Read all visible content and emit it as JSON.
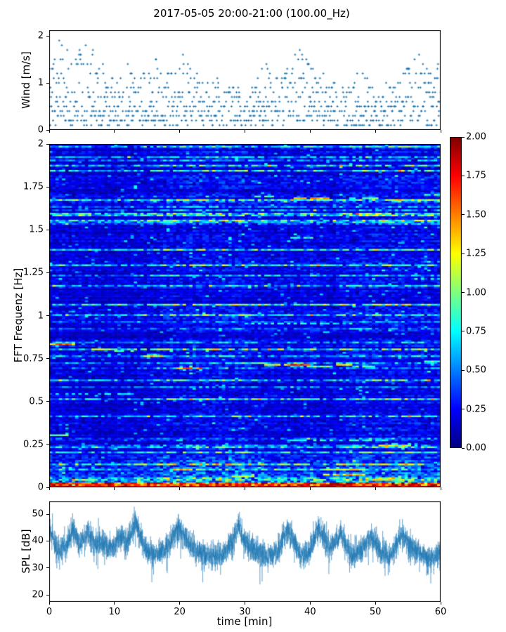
{
  "figure": {
    "title": "2017-05-05 20:00-21:00 (100.00_Hz)",
    "background_color": "#ffffff",
    "accent_color": "#1f77b4"
  },
  "chart_data": [
    {
      "id": "wind",
      "type": "scatter",
      "ylabel": "Wind [m/s]",
      "xlim": [
        0,
        60
      ],
      "ylim": [
        0,
        2.12
      ],
      "yticks": [
        {
          "v": 0,
          "label": "0"
        },
        {
          "v": 1,
          "label": "1"
        },
        {
          "v": 2,
          "label": "2"
        }
      ],
      "xticks": [
        {
          "v": 0
        },
        {
          "v": 10
        },
        {
          "v": 20
        },
        {
          "v": 30
        },
        {
          "v": 40
        },
        {
          "v": 50
        },
        {
          "v": 60
        }
      ],
      "marker_color": "#1f77b4",
      "value_quantization": 0.1,
      "per_minute_max_wind": [
        1.4,
        2.0,
        1.8,
        1.5,
        1.7,
        1.9,
        1.8,
        1.5,
        1.5,
        1.2,
        1.0,
        1.3,
        1.5,
        1.1,
        1.3,
        1.2,
        1.5,
        1.3,
        1.2,
        1.6,
        1.7,
        1.4,
        1.2,
        1.1,
        1.0,
        1.2,
        0.9,
        1.0,
        1.0,
        0.9,
        0.9,
        1.0,
        1.3,
        1.5,
        1.2,
        1.1,
        1.3,
        1.6,
        1.7,
        1.5,
        1.3,
        1.2,
        1.3,
        1.1,
        1.0,
        0.9,
        0.9,
        1.3,
        1.2,
        0.9,
        0.8,
        1.0,
        0.9,
        1.1,
        1.2,
        1.6,
        1.7,
        1.4,
        1.3,
        1.5
      ]
    },
    {
      "id": "fft",
      "type": "heatmap",
      "ylabel": "FFT Frequenz [Hz]",
      "xlim": [
        0,
        60
      ],
      "ylim": [
        0,
        2
      ],
      "yticks": [
        {
          "v": 0,
          "label": "0"
        },
        {
          "v": 0.25,
          "label": "0.25"
        },
        {
          "v": 0.5,
          "label": "0.5"
        },
        {
          "v": 0.75,
          "label": "0.75"
        },
        {
          "v": 1,
          "label": "1"
        },
        {
          "v": 1.25,
          "label": "1.25"
        },
        {
          "v": 1.5,
          "label": "1.5"
        },
        {
          "v": 1.75,
          "label": "1.75"
        },
        {
          "v": 2,
          "label": "2"
        }
      ],
      "xticks": [
        {
          "v": 0
        },
        {
          "v": 10
        },
        {
          "v": 20
        },
        {
          "v": 30
        },
        {
          "v": 40
        },
        {
          "v": 50
        },
        {
          "v": 60
        }
      ],
      "colormap": "jet",
      "clim": [
        0,
        2
      ],
      "colorbar_ticks": [
        {
          "v": 0,
          "label": "0.00"
        },
        {
          "v": 0.25,
          "label": "0.25"
        },
        {
          "v": 0.5,
          "label": "0.50"
        },
        {
          "v": 0.75,
          "label": "0.75"
        },
        {
          "v": 1,
          "label": "1.00"
        },
        {
          "v": 1.25,
          "label": "1.25"
        },
        {
          "v": 1.5,
          "label": "1.50"
        },
        {
          "v": 1.75,
          "label": "1.75"
        },
        {
          "v": 2,
          "label": "2.00"
        }
      ],
      "grid": {
        "cols": 120,
        "rows": 200
      },
      "background_texture": {
        "row_base": 0.14,
        "streak_prob": 0.16,
        "streak_boost": 0.38,
        "low_band_freq": 0.22,
        "surface_freq": 0.06,
        "bottom_freq": 0.03,
        "bottom_value": 1.75
      },
      "tonal_features": [
        {
          "f": 0.83,
          "t0": 0,
          "t1": 3.5,
          "v": 1.45,
          "gap": 0.05
        },
        {
          "f": 0.8,
          "t0": 6.5,
          "t1": 9.5,
          "v": 1.1,
          "gap": 0.1
        },
        {
          "f": 0.79,
          "t0": 10,
          "t1": 12.5,
          "v": 0.9,
          "gap": 0.2
        },
        {
          "f": 0.76,
          "t0": 14.5,
          "t1": 17,
          "v": 1.25,
          "gap": 0.1
        },
        {
          "f": 0.695,
          "t0": 19.5,
          "t1": 23,
          "v": 1.5,
          "gap": 0.08
        },
        {
          "f": 0.72,
          "t0": 28.5,
          "t1": 33,
          "v": 0.9,
          "gap": 0.25
        },
        {
          "f": 0.715,
          "t0": 33,
          "t1": 36,
          "v": 1.2,
          "gap": 0.15
        },
        {
          "f": 0.71,
          "t0": 36.5,
          "t1": 39.5,
          "v": 1.6,
          "gap": 0.1
        },
        {
          "f": 0.705,
          "t0": 39.5,
          "t1": 43,
          "v": 0.95,
          "gap": 0.2
        },
        {
          "f": 0.71,
          "t0": 44,
          "t1": 46,
          "v": 1.3,
          "gap": 0.1
        },
        {
          "f": 0.7,
          "t0": 46.5,
          "t1": 49.5,
          "v": 0.85,
          "gap": 0.25
        },
        {
          "f": 0.73,
          "t0": 56.5,
          "t1": 60,
          "v": 0.9,
          "gap": 0.2
        },
        {
          "f": 1.69,
          "t0": 31,
          "t1": 34.5,
          "v": 0.85,
          "gap": 0.25
        },
        {
          "f": 1.685,
          "t0": 37.5,
          "t1": 42.5,
          "v": 1.35,
          "gap": 0.1
        },
        {
          "f": 1.68,
          "t0": 46,
          "t1": 50,
          "v": 0.9,
          "gap": 0.2
        },
        {
          "f": 1.7,
          "t0": 57.5,
          "t1": 60,
          "v": 0.85,
          "gap": 0.2
        },
        {
          "f": 0.95,
          "t0": 30,
          "t1": 46,
          "v": 0.75,
          "gap": 0.4
        },
        {
          "f": 0.545,
          "t0": 1,
          "t1": 13,
          "v": 0.7,
          "gap": 0.4
        },
        {
          "f": 0.27,
          "t0": 36,
          "t1": 52,
          "v": 0.8,
          "gap": 0.35
        },
        {
          "f": 0.24,
          "t0": 50.5,
          "t1": 55,
          "v": 1.3,
          "gap": 0.1
        },
        {
          "f": 0.3,
          "t0": 0,
          "t1": 2.5,
          "v": 0.9,
          "gap": 0.2
        },
        {
          "f": 0.1,
          "t0": 19,
          "t1": 23,
          "v": 1.3,
          "gap": 0.15
        },
        {
          "f": 0.1,
          "t0": 42,
          "t1": 48,
          "v": 1.2,
          "gap": 0.2
        },
        {
          "f": 0.07,
          "t0": 42,
          "t1": 48,
          "v": 1.3,
          "gap": 0.15
        },
        {
          "f": 0.06,
          "t0": 28,
          "t1": 31,
          "v": 1.2,
          "gap": 0.15
        },
        {
          "f": 1.45,
          "t0": 37,
          "t1": 40,
          "v": 0.8,
          "gap": 0.3
        },
        {
          "f": 1.21,
          "t0": 56,
          "t1": 60,
          "v": 0.8,
          "gap": 0.3
        }
      ]
    },
    {
      "id": "spl",
      "type": "line",
      "ylabel": "SPL [dB]",
      "xlabel": "time [min]",
      "xlim": [
        0,
        60
      ],
      "ylim": [
        17.4,
        54.7
      ],
      "yticks": [
        {
          "v": 20,
          "label": "20"
        },
        {
          "v": 30,
          "label": "30"
        },
        {
          "v": 40,
          "label": "40"
        },
        {
          "v": 50,
          "label": "50"
        }
      ],
      "xticks": [
        {
          "v": 0,
          "label": "0"
        },
        {
          "v": 10,
          "label": "10"
        },
        {
          "v": 20,
          "label": "20"
        },
        {
          "v": 30,
          "label": "30"
        },
        {
          "v": 40,
          "label": "40"
        },
        {
          "v": 50,
          "label": "50"
        },
        {
          "v": 60,
          "label": "60"
        }
      ],
      "line_color": "#1f77b4",
      "noise_sd": 2.3,
      "mean_envelope": [
        [
          0,
          45
        ],
        [
          0.7,
          40
        ],
        [
          1.5,
          36
        ],
        [
          2.5,
          38
        ],
        [
          3.7,
          44
        ],
        [
          4.6,
          39
        ],
        [
          6,
          43
        ],
        [
          7,
          39
        ],
        [
          8,
          40
        ],
        [
          9,
          37.5
        ],
        [
          10,
          38
        ],
        [
          11,
          42
        ],
        [
          12,
          39.5
        ],
        [
          13.2,
          47
        ],
        [
          14.2,
          40
        ],
        [
          15,
          36
        ],
        [
          16,
          35
        ],
        [
          17,
          35.5
        ],
        [
          18,
          37
        ],
        [
          19.7,
          45
        ],
        [
          21,
          41
        ],
        [
          22,
          37
        ],
        [
          23,
          36
        ],
        [
          24,
          35
        ],
        [
          25,
          35
        ],
        [
          26,
          34
        ],
        [
          27,
          36
        ],
        [
          28,
          39
        ],
        [
          29,
          46
        ],
        [
          30,
          40
        ],
        [
          31,
          37
        ],
        [
          32,
          36
        ],
        [
          33,
          35
        ],
        [
          34,
          34.5
        ],
        [
          35,
          36
        ],
        [
          36.5,
          44
        ],
        [
          37.5,
          40
        ],
        [
          38.5,
          35.5
        ],
        [
          39,
          34
        ],
        [
          40,
          37
        ],
        [
          41.3,
          45
        ],
        [
          42,
          42
        ],
        [
          43,
          37
        ],
        [
          44.7,
          43
        ],
        [
          45.5,
          38
        ],
        [
          46.5,
          34
        ],
        [
          47.5,
          36.5
        ],
        [
          48.5,
          38
        ],
        [
          49.3,
          42
        ],
        [
          50,
          39
        ],
        [
          51,
          35.5
        ],
        [
          52,
          34
        ],
        [
          53,
          37
        ],
        [
          54,
          43
        ],
        [
          55,
          39
        ],
        [
          56,
          37
        ],
        [
          57,
          35
        ],
        [
          58,
          34
        ],
        [
          59,
          33.5
        ],
        [
          60,
          36
        ]
      ]
    }
  ]
}
